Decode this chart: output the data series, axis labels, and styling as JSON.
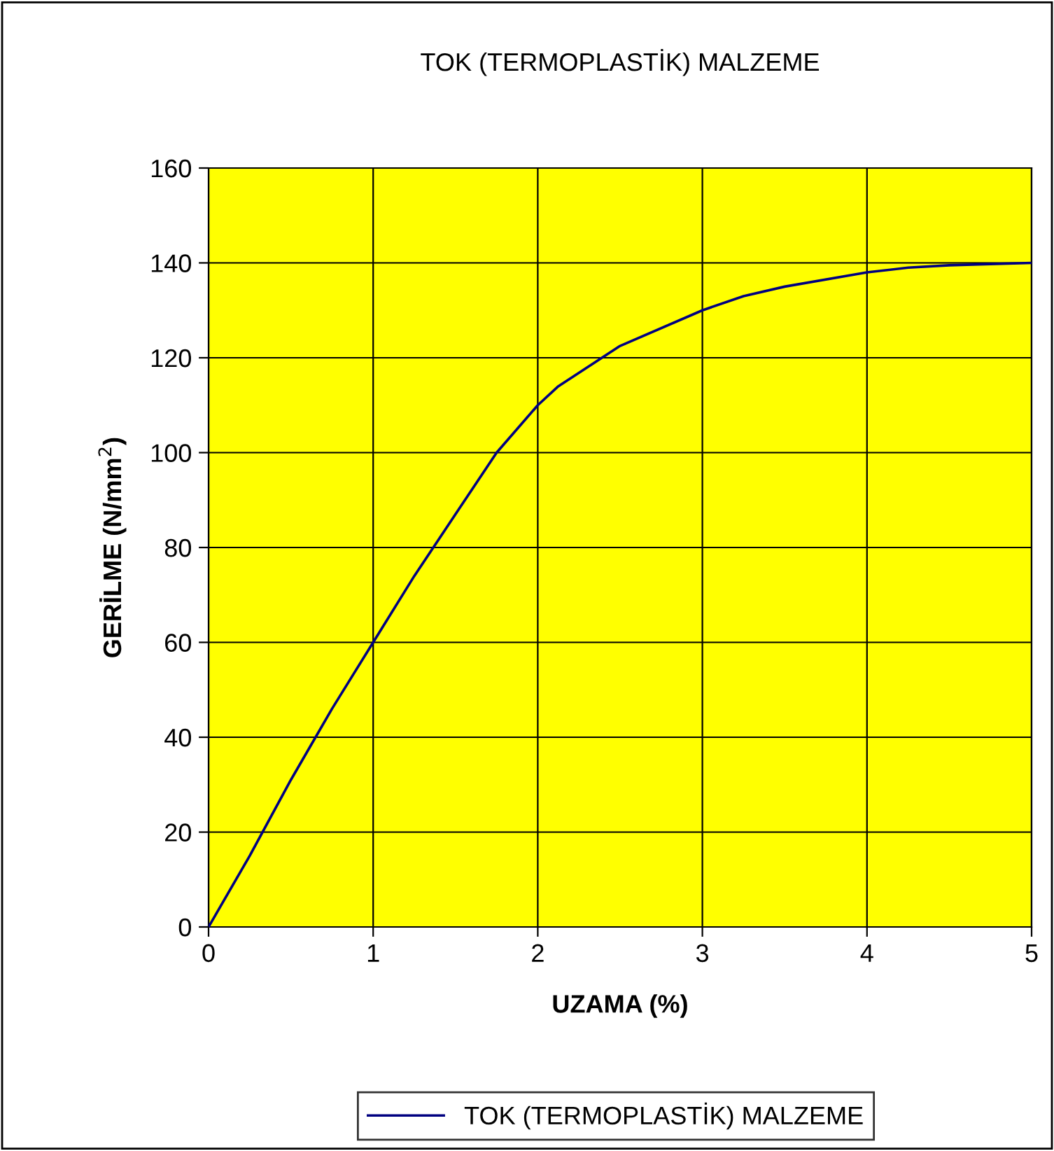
{
  "chart_data": {
    "type": "line",
    "title": "TOK (TERMOPLASTİK) MALZEME",
    "xlabel": "UZAMA (%)",
    "ylabel": "GERİLME (N/mm$^{2}$)",
    "x": [
      0,
      0.25,
      0.5,
      0.75,
      1,
      1.25,
      1.5,
      1.75,
      2,
      2.125,
      2.5,
      3,
      3.25,
      3.5,
      4,
      4.25,
      4.5,
      5
    ],
    "series": [
      {
        "name": "TOK (TERMOPLASTİK) MALZEME",
        "color": "#000080",
        "values": [
          0,
          15,
          31,
          46,
          60,
          74,
          87,
          100,
          110,
          114,
          122.5,
          130,
          133,
          135,
          138,
          139,
          139.5,
          140
        ]
      }
    ],
    "xlim": [
      0,
      5
    ],
    "ylim": [
      0,
      160
    ],
    "xticks": [
      0,
      1,
      2,
      3,
      4,
      5
    ],
    "yticks": [
      0,
      20,
      40,
      60,
      80,
      100,
      120,
      140,
      160
    ],
    "grid": true,
    "legend": "bottom",
    "marker": "none",
    "line_style": "solid"
  }
}
